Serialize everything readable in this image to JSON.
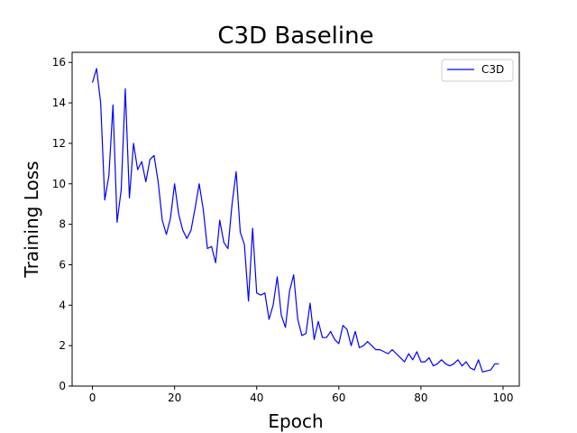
{
  "chart_data": {
    "type": "line",
    "title": "C3D Baseline",
    "xlabel": "Epoch",
    "ylabel": "Training Loss",
    "xlim": [
      -4.95,
      103.95
    ],
    "ylim": [
      0,
      16.5
    ],
    "xticks": [
      0,
      20,
      40,
      60,
      80,
      100
    ],
    "yticks": [
      0,
      2,
      4,
      6,
      8,
      10,
      12,
      14,
      16
    ],
    "grid": false,
    "legend": "top-right",
    "series": [
      {
        "name": "C3D",
        "color": "#0000ff",
        "x": [
          0,
          1,
          2,
          3,
          4,
          5,
          6,
          7,
          8,
          9,
          10,
          11,
          12,
          13,
          14,
          15,
          16,
          17,
          18,
          19,
          20,
          21,
          22,
          23,
          24,
          25,
          26,
          27,
          28,
          29,
          30,
          31,
          32,
          33,
          34,
          35,
          36,
          37,
          38,
          39,
          40,
          41,
          42,
          43,
          44,
          45,
          46,
          47,
          48,
          49,
          50,
          51,
          52,
          53,
          54,
          55,
          56,
          57,
          58,
          59,
          60,
          61,
          62,
          63,
          64,
          65,
          66,
          67,
          68,
          69,
          70,
          71,
          72,
          73,
          74,
          75,
          76,
          77,
          78,
          79,
          80,
          81,
          82,
          83,
          84,
          85,
          86,
          87,
          88,
          89,
          90,
          91,
          92,
          93,
          94,
          95,
          96,
          97,
          98,
          99
        ],
        "values": [
          15.0,
          15.7,
          14.0,
          9.2,
          10.4,
          13.9,
          8.1,
          9.7,
          14.7,
          9.3,
          12.0,
          10.7,
          11.1,
          10.1,
          11.2,
          11.4,
          10.1,
          8.2,
          7.5,
          8.3,
          10.0,
          8.5,
          7.7,
          7.3,
          7.7,
          8.8,
          10.0,
          8.7,
          6.8,
          6.9,
          6.1,
          8.2,
          7.1,
          6.8,
          9.0,
          10.6,
          7.6,
          7.0,
          4.2,
          7.8,
          4.6,
          4.5,
          4.6,
          3.3,
          4.0,
          5.4,
          3.5,
          2.9,
          4.7,
          5.5,
          3.3,
          2.5,
          2.6,
          4.1,
          2.3,
          3.2,
          2.4,
          2.4,
          2.7,
          2.3,
          2.1,
          3.0,
          2.8,
          2.0,
          2.7,
          1.9,
          2.0,
          2.2,
          2.0,
          1.8,
          1.8,
          1.7,
          1.6,
          1.8,
          1.6,
          1.4,
          1.2,
          1.6,
          1.3,
          1.7,
          1.2,
          1.2,
          1.4,
          1.0,
          1.1,
          1.3,
          1.1,
          1.0,
          1.1,
          1.3,
          1.0,
          1.2,
          0.9,
          0.8,
          1.3,
          0.7,
          0.75,
          0.8,
          1.1,
          1.1
        ]
      }
    ]
  }
}
